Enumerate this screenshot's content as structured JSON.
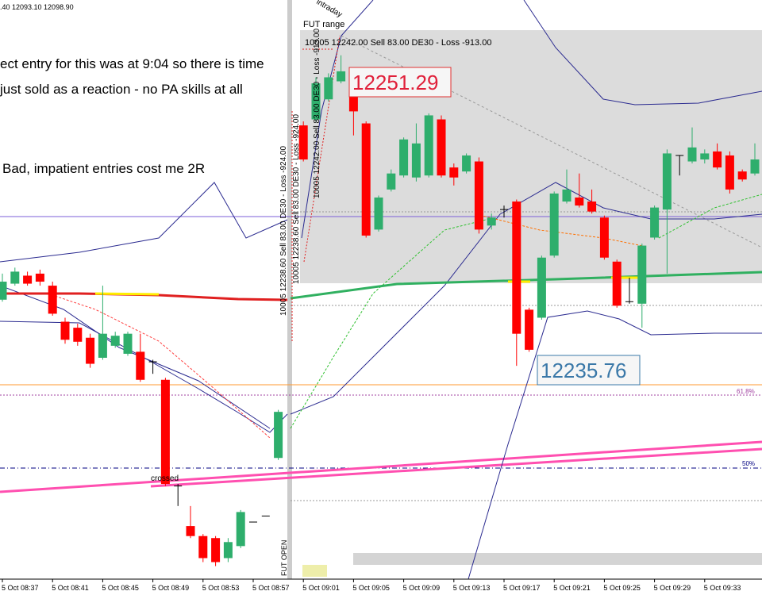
{
  "chart_data": {
    "type": "candlestick",
    "x": [
      "5 Oct 08:37",
      null,
      null,
      null,
      "5 Oct 08:41",
      null,
      null,
      null,
      "5 Oct 08:45",
      null,
      null,
      null,
      "5 Oct 08:49",
      null,
      null,
      null,
      "5 Oct 08:53",
      null,
      null,
      null,
      "5 Oct 08:57",
      null,
      null,
      null,
      "5 Oct 09:01",
      null,
      null,
      null,
      "5 Oct 09:05",
      null,
      null,
      null,
      "5 Oct 09:09",
      null,
      null,
      null,
      "5 Oct 09:13",
      null,
      null,
      null,
      "5 Oct 09:17",
      null,
      null,
      null,
      "5 Oct 09:21",
      null,
      null,
      null,
      "5 Oct 09:25",
      null,
      null,
      null,
      "5 Oct 09:29",
      null,
      null,
      null,
      "5 Oct 09:33",
      null,
      null,
      null,
      null
    ],
    "open": [
      12239.1,
      12239.9,
      12240.3,
      12240.4,
      12239.8,
      12238.0,
      12237.7,
      12237.2,
      12236.2,
      12236.8,
      12236.4,
      12236.5,
      12236.0,
      12235.1,
      12229.8,
      12227.8,
      12227.3,
      12227.2,
      12226.2,
      12226.8,
      12228.0,
      12228.3,
      12231.2,
      null,
      12247.8,
      12248.1,
      12249.1,
      12250.0,
      12249.9,
      12247.9,
      12242.6,
      12244.6,
      12245.3,
      12245.2,
      12245.3,
      12248.1,
      12245.7,
      12245.5,
      12246.0,
      12242.8,
      12243.6,
      12244.0,
      12238.6,
      12238.2,
      12241.3,
      12244.0,
      12244.2,
      12244.0,
      12243.2,
      12241.0,
      12239.0,
      12238.9,
      12242.2,
      12243.6,
      12246.3,
      12246.0,
      12246.1,
      12246.5,
      12246.3,
      12245.5,
      12245.4
    ],
    "high": [
      12240.4,
      12240.7,
      12240.5,
      12240.6,
      12240.0,
      12238.2,
      12237.9,
      12237.4,
      12239.8,
      12237.5,
      12237.5,
      12237.4,
      12236.1,
      12235.2,
      12229.9,
      12228.8,
      12227.4,
      12227.3,
      12227.2,
      12228.6,
      12228.0,
      12228.3,
      12233.6,
      null,
      12248.0,
      12250.2,
      12250.4,
      12251.3,
      12250.1,
      12248.0,
      12244.3,
      12245.6,
      12247.2,
      12247.9,
      12248.4,
      12248.3,
      12245.9,
      12246.4,
      12246.2,
      12243.4,
      12243.8,
      12244.1,
      12238.7,
      12241.3,
      12244.5,
      12245.6,
      12245.4,
      12244.6,
      12243.3,
      12241.1,
      12240.2,
      12241.9,
      12243.8,
      12246.6,
      12246.3,
      12247.7,
      12246.6,
      12246.9,
      12246.5,
      12245.6,
      12246.9
    ],
    "low": [
      12239.0,
      12239.8,
      12239.8,
      12239.8,
      12238.3,
      12236.9,
      12236.8,
      12235.7,
      12236.1,
      12236.7,
      12236.3,
      12235.0,
      12235.4,
      12229.8,
      12228.8,
      12227.2,
      12226.0,
      12225.8,
      12226.0,
      12226.7,
      12228.0,
      12228.3,
      12231.1,
      null,
      12246.0,
      12248.0,
      12249.0,
      12249.9,
      12247.3,
      12242.2,
      12242.5,
      12244.5,
      12245.2,
      12245.0,
      12245.2,
      12245.2,
      12244.8,
      12245.4,
      12242.4,
      12242.6,
      12243.2,
      12235.8,
      12236.5,
      12238.1,
      12241.2,
      12243.9,
      12243.7,
      12243.4,
      12241.1,
      12238.7,
      12238.9,
      12237.7,
      12242.1,
      12240.4,
      12245.3,
      12245.9,
      12245.9,
      12245.6,
      12244.4,
      12245.0,
      12245.3
    ],
    "close": [
      12240.0,
      12240.5,
      12239.9,
      12240.0,
      12238.4,
      12237.1,
      12237.0,
      12235.9,
      12237.4,
      12237.3,
      12237.4,
      12235.1,
      12236.0,
      12229.9,
      12229.8,
      12227.3,
      12226.2,
      12226.0,
      12227.0,
      12228.5,
      12228.0,
      12228.3,
      12233.5,
      null,
      12246.1,
      12249.9,
      12250.2,
      12250.5,
      12248.5,
      12242.3,
      12244.2,
      12245.4,
      12247.1,
      12246.9,
      12248.3,
      12245.3,
      12245.2,
      12246.3,
      12242.6,
      12243.2,
      12243.6,
      12237.4,
      12236.6,
      12241.2,
      12244.4,
      12244.6,
      12243.8,
      12243.5,
      12241.2,
      12238.8,
      12239.0,
      12241.8,
      12243.7,
      12246.4,
      12246.3,
      12246.7,
      12246.4,
      12245.7,
      12244.6,
      12245.1,
      12246.1
    ],
    "up_color": "#2eae6c",
    "down_color": "#ff0000",
    "flat_color": "#000000",
    "ylim": [
      12225.15,
      12254.06
    ],
    "annotations": {
      "header": ".40 12093.10 12098.90",
      "note_1": "ect entry for this was at 9:04 so there is time",
      "note_2": "just sold as a reaction - no PA skills at all",
      "note_3": "Bad, impatient entries cost me 2R",
      "fut_range": "FUT range",
      "intraday": "intraday",
      "trade_box": "10005 12242.00 Sell 83.00 DE30 - Loss  -913.00",
      "high_label": "12251.29",
      "low_label": "12235.76",
      "fib_618": "61.8%",
      "fib_50": "50%",
      "crossed": "crossed",
      "fut_open": "FUT OPEN",
      "trade_v1": "10005 12238.60 Sell 83.00 DE30 - Loss  -924.00",
      "trade_v2": "10005 12238.60 Sell 83.00 DE30 - Loss  -924.00",
      "trade_v3": "10005 12242.00 Sell 83.00 DE30 - Loss  -913.00"
    }
  }
}
